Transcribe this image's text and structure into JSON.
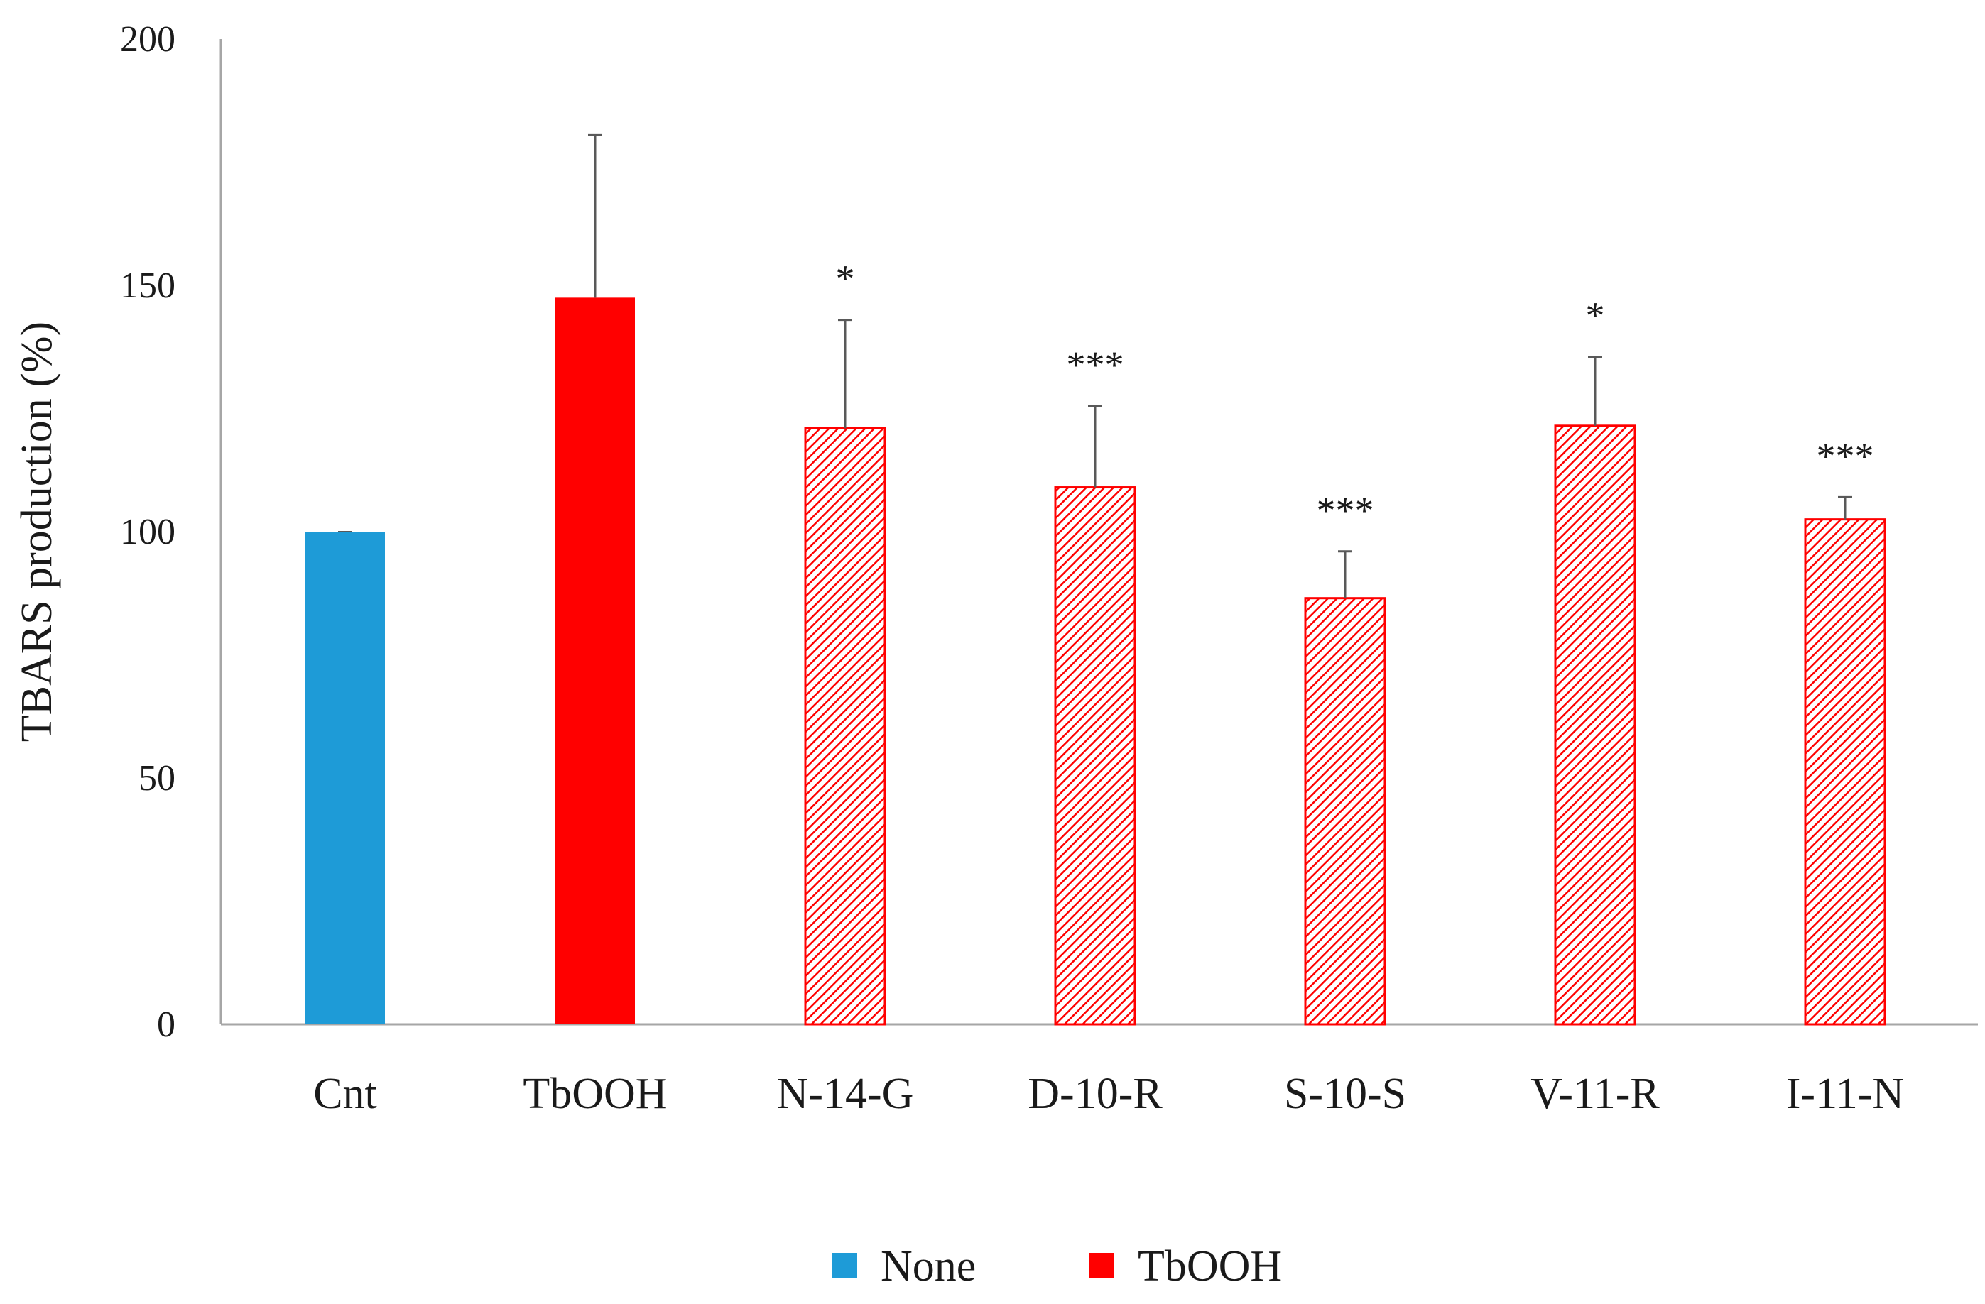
{
  "chart_data": {
    "type": "bar",
    "title": "",
    "xlabel": "",
    "ylabel": "TBARS production (%)",
    "ylim": [
      0,
      200
    ],
    "yticks": [
      0,
      50,
      100,
      150,
      200
    ],
    "grid": false,
    "legend_position": "bottom-center",
    "categories": [
      "Cnt",
      "TbOOH",
      "N-14-G",
      "D-10-R",
      "S-10-S",
      "V-11-R",
      "I-11-N"
    ],
    "values": [
      100,
      147.5,
      121,
      109,
      86.5,
      121.5,
      102.5
    ],
    "errors": [
      0,
      33,
      22,
      16.5,
      9.5,
      14,
      4.5
    ],
    "significance": [
      "",
      "",
      "*",
      "***",
      "***",
      "*",
      "***"
    ],
    "bar_group": [
      "None",
      "TbOOH",
      "TbOOH",
      "TbOOH",
      "TbOOH",
      "TbOOH",
      "TbOOH"
    ],
    "bar_style": [
      "solid",
      "solid",
      "hatched",
      "hatched",
      "hatched",
      "hatched",
      "hatched"
    ],
    "legend": [
      {
        "name": "None",
        "color": "#1E9BD7"
      },
      {
        "name": "TbOOH",
        "color": "#FF0000"
      }
    ]
  }
}
